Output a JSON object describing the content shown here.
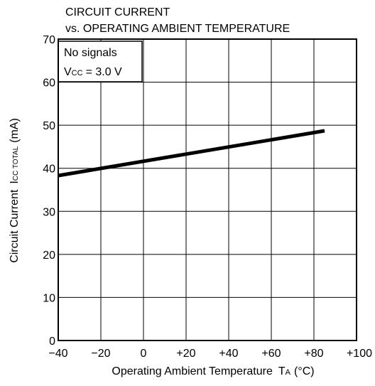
{
  "chart_data": {
    "type": "line",
    "title_line1": "CIRCUIT CURRENT",
    "title_line2": "vs. OPERATING AMBIENT TEMPERATURE",
    "xlabel": "Operating Ambient Temperature",
    "xlabel_symbol": "T",
    "xlabel_symbol_sub": "A",
    "xlabel_unit": "(°C)",
    "ylabel": "Circuit Current",
    "ylabel_symbol": "I",
    "ylabel_symbol_sub": "CC TOTAL",
    "ylabel_unit": "(mA)",
    "xlim": [
      -40,
      100
    ],
    "ylim": [
      0,
      70
    ],
    "x_ticks": [
      -40,
      -20,
      0,
      20,
      40,
      60,
      80,
      100
    ],
    "x_tick_labels": [
      "−40",
      "−20",
      "0",
      "+20",
      "+40",
      "+60",
      "+80",
      "+100"
    ],
    "y_ticks": [
      0,
      10,
      20,
      30,
      40,
      50,
      60,
      70
    ],
    "y_tick_labels": [
      "0",
      "10",
      "20",
      "30",
      "40",
      "50",
      "60",
      "70"
    ],
    "grid": true,
    "series": [
      {
        "x": [
          -40,
          85
        ],
        "y": [
          38.3,
          48.7
        ]
      }
    ],
    "annotation": {
      "line1": "No signals",
      "line2_symbol": "V",
      "line2_sub": "CC",
      "line2_value": "= 3.0 V"
    }
  }
}
